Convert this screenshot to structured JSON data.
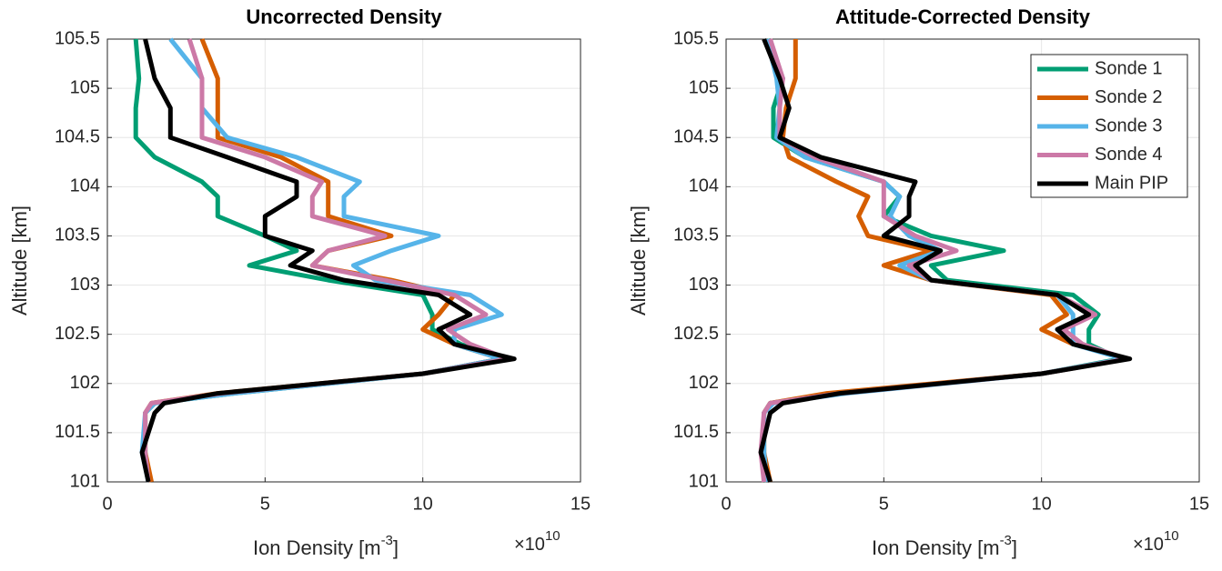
{
  "chart_data": [
    {
      "type": "line",
      "title": "Uncorrected Density",
      "xlabel": "Ion Density [m",
      "xlabel_sup": "-3",
      "xlabel_end": "]",
      "x_multiplier": "×10",
      "x_multiplier_exponent": "10",
      "ylabel": "Altitude [km]",
      "xlim": [
        0,
        15
      ],
      "xticks": [
        0,
        5,
        10,
        15
      ],
      "ylim": [
        101,
        105.5
      ],
      "yticks": [
        101,
        101.5,
        102,
        102.5,
        103,
        103.5,
        104,
        104.5,
        105,
        105.5
      ],
      "grid": true,
      "legend": null,
      "altitudes": [
        101,
        101.3,
        101.7,
        101.8,
        101.9,
        102.1,
        102.25,
        102.4,
        102.55,
        102.7,
        102.9,
        103.05,
        103.2,
        103.35,
        103.5,
        103.7,
        103.9,
        104.05,
        104.3,
        104.5,
        104.8,
        105.1,
        105.5
      ],
      "series": [
        {
          "color": "#009e73",
          "values": [
            1.3,
            1.2,
            1.2,
            1.5,
            4,
            10,
            12.5,
            11.2,
            10.3,
            10.3,
            10,
            7,
            4.5,
            6,
            5,
            3.5,
            3.5,
            3,
            1.5,
            0.9,
            0.9,
            1,
            0.9
          ]
        },
        {
          "color": "#d55e00",
          "values": [
            1.4,
            1.2,
            1.2,
            1.4,
            3.5,
            10,
            12.5,
            11,
            10,
            10.5,
            11,
            9,
            6.5,
            7,
            9,
            7,
            7,
            7,
            5.5,
            3.5,
            3.5,
            3.5,
            3
          ]
        },
        {
          "color": "#56b4e9",
          "values": [
            1.3,
            1.1,
            1.2,
            1.5,
            4,
            10,
            12.5,
            11,
            11,
            12.5,
            11.5,
            8.5,
            7.8,
            9,
            10.5,
            7.5,
            7.5,
            8,
            6,
            3.8,
            3,
            3,
            2
          ]
        },
        {
          "color": "#cc79a7",
          "values": [
            1.3,
            1.2,
            1.2,
            1.4,
            3.6,
            10,
            12.7,
            11.5,
            10.8,
            12,
            11,
            8.8,
            6.5,
            7,
            8.8,
            6.5,
            6.5,
            6.8,
            5,
            3,
            3,
            3,
            2.6
          ]
        },
        {
          "color": "#000000",
          "values": [
            1.3,
            1.1,
            1.5,
            1.8,
            3.5,
            10,
            12.9,
            11,
            10.5,
            11.5,
            10.5,
            7.5,
            5.8,
            6.5,
            5,
            5,
            6,
            6,
            3.8,
            2,
            2,
            1.5,
            1.2
          ]
        }
      ]
    },
    {
      "type": "line",
      "title": "Attitude-Corrected Density",
      "xlabel": "Ion Density [m",
      "xlabel_sup": "-3",
      "xlabel_end": "]",
      "x_multiplier": "×10",
      "x_multiplier_exponent": "10",
      "ylabel": "Altitude [km]",
      "xlim": [
        0,
        15
      ],
      "xticks": [
        0,
        5,
        10,
        15
      ],
      "ylim": [
        101,
        105.5
      ],
      "yticks": [
        101,
        101.5,
        102,
        102.5,
        103,
        103.5,
        104,
        104.5,
        105,
        105.5
      ],
      "grid": true,
      "legend": "northeast",
      "altitudes": [
        101,
        101.3,
        101.7,
        101.8,
        101.9,
        102.1,
        102.25,
        102.4,
        102.55,
        102.7,
        102.9,
        103.05,
        103.2,
        103.35,
        103.5,
        103.7,
        103.9,
        104.05,
        104.3,
        104.5,
        104.8,
        105.1,
        105.5
      ],
      "series": [
        {
          "name": "Sonde 1",
          "color": "#009e73",
          "values": [
            1.3,
            1.2,
            1.2,
            1.4,
            3.5,
            10,
            12.5,
            11.5,
            11.5,
            11.8,
            11,
            7,
            6.5,
            8.8,
            6.5,
            5,
            5.5,
            5,
            2.5,
            1.5,
            1.5,
            1.8,
            1.3
          ]
        },
        {
          "name": "Sonde 2",
          "color": "#d55e00",
          "values": [
            1.4,
            1.2,
            1.2,
            1.4,
            3.2,
            10,
            12.7,
            11,
            10,
            10.8,
            10.3,
            6.5,
            5,
            6.5,
            4.5,
            4.2,
            4.5,
            3.5,
            2,
            1.8,
            1.9,
            2.2,
            2.2
          ]
        },
        {
          "name": "Sonde 3",
          "color": "#56b4e9",
          "values": [
            1.3,
            1.2,
            1.2,
            1.5,
            3.8,
            10,
            12.6,
            11,
            11,
            11,
            10.5,
            6.5,
            5.5,
            6.8,
            5.8,
            5.2,
            5.5,
            5,
            2.5,
            1.6,
            1.7,
            1.6,
            1.3
          ]
        },
        {
          "name": "Sonde 4",
          "color": "#cc79a7",
          "values": [
            1.2,
            1.1,
            1.2,
            1.4,
            3.6,
            10,
            12.7,
            11.3,
            10.7,
            11.7,
            10.5,
            6.5,
            5.8,
            7.3,
            6,
            5,
            5,
            5,
            2.8,
            1.7,
            1.7,
            1.8,
            1.4
          ]
        },
        {
          "name": "Main PIP",
          "color": "#000000",
          "values": [
            1.4,
            1.1,
            1.4,
            1.8,
            3.6,
            10,
            12.8,
            11,
            10.5,
            11.5,
            10.5,
            6.5,
            6,
            6.8,
            5,
            5.8,
            5.8,
            6,
            3,
            1.7,
            2,
            1.7,
            1.2
          ]
        }
      ]
    }
  ]
}
